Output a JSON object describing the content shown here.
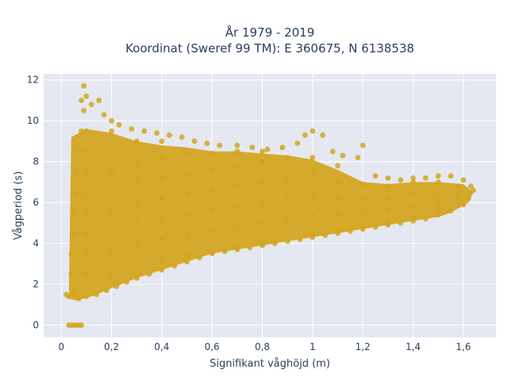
{
  "chart_data": {
    "type": "scatter",
    "title_lines": [
      "År 1979 - 2019",
      "Koordinat (Sweref 99 TM): E 360675, N 6138538"
    ],
    "xlabel": "Signifikant våghöjd (m)",
    "ylabel": "Vågperiod (s)",
    "xlim": [
      -0.07,
      1.73
    ],
    "ylim": [
      -0.6,
      12.3
    ],
    "x_ticks": [
      0,
      0.2,
      0.4,
      0.6,
      0.8,
      1,
      1.2,
      1.4,
      1.6
    ],
    "x_tick_labels": [
      "0",
      "0,2",
      "0,4",
      "0,6",
      "0,8",
      "1",
      "1,2",
      "1,4",
      "1,6"
    ],
    "y_ticks": [
      0,
      2,
      4,
      6,
      8,
      10,
      12
    ],
    "y_tick_labels": [
      "0",
      "2",
      "4",
      "6",
      "8",
      "10",
      "12"
    ],
    "grid": true,
    "legend": false,
    "marker_color": "#d4a520",
    "plot_bg": "#e5e8f0",
    "points": [
      [
        0.03,
        0
      ],
      [
        0.04,
        0
      ],
      [
        0.05,
        0
      ],
      [
        0.06,
        0
      ],
      [
        0.07,
        0
      ],
      [
        0.08,
        0
      ],
      [
        0.02,
        1.5
      ],
      [
        0.03,
        1.4
      ],
      [
        0.05,
        1.6
      ],
      [
        0.07,
        1.3
      ],
      [
        0.1,
        1.4
      ],
      [
        0.14,
        1.5
      ],
      [
        0.18,
        1.7
      ],
      [
        0.22,
        1.9
      ],
      [
        0.26,
        2.1
      ],
      [
        0.3,
        2.3
      ],
      [
        0.35,
        2.5
      ],
      [
        0.4,
        2.7
      ],
      [
        0.45,
        2.9
      ],
      [
        0.5,
        3.1
      ],
      [
        0.55,
        3.3
      ],
      [
        0.6,
        3.5
      ],
      [
        0.65,
        3.6
      ],
      [
        0.7,
        3.7
      ],
      [
        0.75,
        3.8
      ],
      [
        0.8,
        3.9
      ],
      [
        0.85,
        4.0
      ],
      [
        0.9,
        4.1
      ],
      [
        0.95,
        4.2
      ],
      [
        1.0,
        4.3
      ],
      [
        1.05,
        4.4
      ],
      [
        1.1,
        4.5
      ],
      [
        1.15,
        4.6
      ],
      [
        1.2,
        4.7
      ],
      [
        1.25,
        4.8
      ],
      [
        1.3,
        4.9
      ],
      [
        1.35,
        5.0
      ],
      [
        1.4,
        5.1
      ],
      [
        1.45,
        5.2
      ],
      [
        1.5,
        5.4
      ],
      [
        1.55,
        5.6
      ],
      [
        1.6,
        5.9
      ],
      [
        0.04,
        2.5
      ],
      [
        0.04,
        3.5
      ],
      [
        0.05,
        4.5
      ],
      [
        0.05,
        5.5
      ],
      [
        0.06,
        6.5
      ],
      [
        0.06,
        7.5
      ],
      [
        0.07,
        8.5
      ],
      [
        0.08,
        9.5
      ],
      [
        0.09,
        10.5
      ],
      [
        0.08,
        11.0
      ],
      [
        0.09,
        11.7
      ],
      [
        0.1,
        11.2
      ],
      [
        0.12,
        10.8
      ],
      [
        0.15,
        11.0
      ],
      [
        0.17,
        10.3
      ],
      [
        0.2,
        10.0
      ],
      [
        0.23,
        9.8
      ],
      [
        0.28,
        9.6
      ],
      [
        0.33,
        9.5
      ],
      [
        0.38,
        9.4
      ],
      [
        0.43,
        9.3
      ],
      [
        0.48,
        9.2
      ],
      [
        0.53,
        9.0
      ],
      [
        0.58,
        8.9
      ],
      [
        0.63,
        8.8
      ],
      [
        0.7,
        8.8
      ],
      [
        0.76,
        8.7
      ],
      [
        0.82,
        8.6
      ],
      [
        0.88,
        8.7
      ],
      [
        0.94,
        8.9
      ],
      [
        0.97,
        9.3
      ],
      [
        1.0,
        9.5
      ],
      [
        1.04,
        9.3
      ],
      [
        1.08,
        8.5
      ],
      [
        1.12,
        8.3
      ],
      [
        1.18,
        8.2
      ],
      [
        1.2,
        8.8
      ],
      [
        1.25,
        7.3
      ],
      [
        1.3,
        7.2
      ],
      [
        1.35,
        7.1
      ],
      [
        1.4,
        7.2
      ],
      [
        1.45,
        7.2
      ],
      [
        1.5,
        7.3
      ],
      [
        1.55,
        7.3
      ],
      [
        1.6,
        7.1
      ],
      [
        1.63,
        6.8
      ],
      [
        1.62,
        6.2
      ],
      [
        1.64,
        6.6
      ],
      [
        0.1,
        2.5
      ],
      [
        0.1,
        3.5
      ],
      [
        0.1,
        4.5
      ],
      [
        0.1,
        5.5
      ],
      [
        0.1,
        6.5
      ],
      [
        0.1,
        7.5
      ],
      [
        0.1,
        8.5
      ],
      [
        0.1,
        9.5
      ],
      [
        0.2,
        2.5
      ],
      [
        0.2,
        3.5
      ],
      [
        0.2,
        4.5
      ],
      [
        0.2,
        5.5
      ],
      [
        0.2,
        6.5
      ],
      [
        0.2,
        7.5
      ],
      [
        0.2,
        8.5
      ],
      [
        0.2,
        9.5
      ],
      [
        0.3,
        3.0
      ],
      [
        0.3,
        4.0
      ],
      [
        0.3,
        5.0
      ],
      [
        0.3,
        6.0
      ],
      [
        0.3,
        7.0
      ],
      [
        0.3,
        8.0
      ],
      [
        0.3,
        9.0
      ],
      [
        0.4,
        3.2
      ],
      [
        0.4,
        4.2
      ],
      [
        0.4,
        5.2
      ],
      [
        0.4,
        6.2
      ],
      [
        0.4,
        7.2
      ],
      [
        0.4,
        8.2
      ],
      [
        0.4,
        9.0
      ],
      [
        0.5,
        3.4
      ],
      [
        0.5,
        4.4
      ],
      [
        0.5,
        5.4
      ],
      [
        0.5,
        6.4
      ],
      [
        0.5,
        7.4
      ],
      [
        0.5,
        8.4
      ],
      [
        0.6,
        3.6
      ],
      [
        0.6,
        4.6
      ],
      [
        0.6,
        5.6
      ],
      [
        0.6,
        6.6
      ],
      [
        0.6,
        7.6
      ],
      [
        0.6,
        8.4
      ],
      [
        0.7,
        3.8
      ],
      [
        0.7,
        4.8
      ],
      [
        0.7,
        5.8
      ],
      [
        0.7,
        6.8
      ],
      [
        0.7,
        7.8
      ],
      [
        0.7,
        8.5
      ],
      [
        0.8,
        4.0
      ],
      [
        0.8,
        5.0
      ],
      [
        0.8,
        6.0
      ],
      [
        0.8,
        7.0
      ],
      [
        0.8,
        8.0
      ],
      [
        0.8,
        8.5
      ],
      [
        0.9,
        4.2
      ],
      [
        0.9,
        5.2
      ],
      [
        0.9,
        6.2
      ],
      [
        0.9,
        7.2
      ],
      [
        0.9,
        8.2
      ],
      [
        1.0,
        4.4
      ],
      [
        1.0,
        5.4
      ],
      [
        1.0,
        6.4
      ],
      [
        1.0,
        7.4
      ],
      [
        1.0,
        8.2
      ],
      [
        1.1,
        4.6
      ],
      [
        1.1,
        5.4
      ],
      [
        1.1,
        6.2
      ],
      [
        1.1,
        7.0
      ],
      [
        1.1,
        7.8
      ],
      [
        1.2,
        4.8
      ],
      [
        1.2,
        5.5
      ],
      [
        1.2,
        6.2
      ],
      [
        1.2,
        6.9
      ],
      [
        1.3,
        5.0
      ],
      [
        1.3,
        5.6
      ],
      [
        1.3,
        6.2
      ],
      [
        1.3,
        6.8
      ],
      [
        1.4,
        5.2
      ],
      [
        1.4,
        5.8
      ],
      [
        1.4,
        6.4
      ],
      [
        1.4,
        7.0
      ],
      [
        1.5,
        5.5
      ],
      [
        1.5,
        6.0
      ],
      [
        1.5,
        6.5
      ],
      [
        1.5,
        7.0
      ],
      [
        1.58,
        5.9
      ],
      [
        1.58,
        6.3
      ],
      [
        1.58,
        6.8
      ]
    ]
  }
}
